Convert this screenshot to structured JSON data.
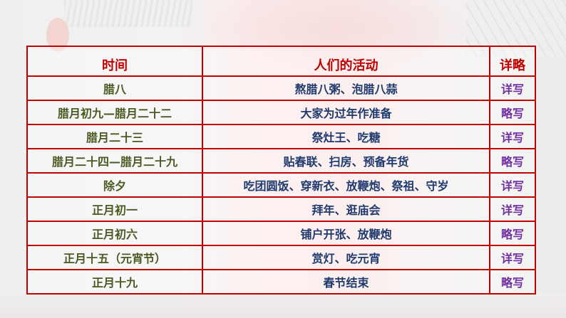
{
  "table": {
    "headers": [
      "时间",
      "人们的活动",
      "详略"
    ],
    "rows": [
      {
        "time": "腊八",
        "activity": "熬腊八粥、泡腊八蒜",
        "detail": "详写"
      },
      {
        "time": "腊月初九—腊月二十二",
        "activity": "大家为过年作准备",
        "detail": "略写"
      },
      {
        "time": "腊月二十三",
        "activity": "祭灶王、吃糖",
        "detail": "详写"
      },
      {
        "time": "腊月二十四—腊月二十九",
        "activity": "贴春联、扫房、预备年货",
        "detail": "略写"
      },
      {
        "time": "除夕",
        "activity": "吃团圆饭、穿新衣、放鞭炮、祭祖、守岁",
        "detail": "详写"
      },
      {
        "time": "正月初一",
        "activity": "拜年、逛庙会",
        "detail": "详写"
      },
      {
        "time": "正月初六",
        "activity": "铺户开张、放鞭炮",
        "detail": "略写"
      },
      {
        "time": "正月十五（元宵节）",
        "activity": "赏灯、吃元宵",
        "detail": "详写"
      },
      {
        "time": "正月十九",
        "activity": "春节结束",
        "detail": "略写"
      }
    ]
  },
  "colors": {
    "border": "#c00000",
    "header": "#c00000",
    "time": "#4b5a23",
    "activity": "#1f3a6e",
    "detail": "#7030a0"
  }
}
